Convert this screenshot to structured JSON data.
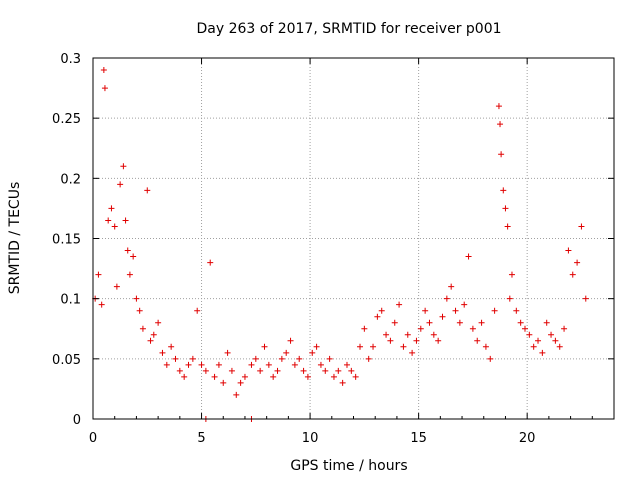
{
  "chart_data": {
    "type": "scatter",
    "title": "Day 263 of 2017, SRMTID for receiver p001",
    "xlabel": "GPS time / hours",
    "ylabel": "SRMTID / TECUs",
    "xlim": [
      0,
      24
    ],
    "ylim": [
      0,
      0.3
    ],
    "xticks": [
      0,
      5,
      10,
      15,
      20
    ],
    "yticks": [
      0,
      0.05,
      0.1,
      0.15,
      0.2,
      0.25,
      0.3
    ],
    "xtick_labels": [
      "0",
      "5",
      "10",
      "15",
      "20"
    ],
    "ytick_labels": [
      "0",
      "0.05",
      "0.1",
      "0.15",
      "0.2",
      "0.25",
      "0.3"
    ],
    "grid": true,
    "marker": "plus",
    "color": "#e00000",
    "series": [
      {
        "name": "SRMTID",
        "x": [
          0.1,
          0.25,
          0.4,
          0.5,
          0.55,
          0.7,
          0.85,
          1.0,
          1.1,
          1.25,
          1.4,
          1.5,
          1.6,
          1.7,
          1.85,
          2.0,
          2.15,
          2.3,
          2.5,
          2.65,
          2.8,
          3.0,
          3.2,
          3.4,
          3.6,
          3.8,
          4.0,
          4.2,
          4.4,
          4.6,
          4.8,
          5.0,
          5.2,
          5.4,
          5.6,
          5.8,
          6.0,
          6.2,
          6.4,
          6.6,
          6.8,
          7.0,
          7.3,
          7.5,
          7.7,
          7.9,
          8.1,
          8.3,
          8.5,
          8.7,
          8.9,
          9.1,
          9.3,
          9.5,
          9.7,
          9.9,
          10.1,
          10.3,
          10.5,
          10.7,
          10.9,
          11.1,
          11.3,
          11.5,
          11.7,
          11.9,
          12.1,
          12.3,
          12.5,
          12.7,
          12.9,
          13.1,
          13.3,
          13.5,
          13.7,
          13.9,
          14.1,
          14.3,
          14.5,
          14.7,
          14.9,
          15.1,
          15.3,
          15.5,
          15.7,
          15.9,
          16.1,
          16.3,
          16.5,
          16.7,
          16.9,
          17.1,
          17.3,
          17.5,
          17.7,
          17.9,
          18.1,
          18.3,
          18.5,
          18.7,
          18.75,
          18.8,
          18.9,
          19.0,
          19.1,
          19.2,
          19.3,
          19.5,
          19.7,
          19.9,
          20.1,
          20.3,
          20.5,
          20.7,
          20.9,
          21.1,
          21.3,
          21.5,
          21.7,
          21.9,
          22.1,
          22.3,
          22.5,
          22.7
        ],
        "y": [
          0.1,
          0.12,
          0.095,
          0.29,
          0.275,
          0.165,
          0.175,
          0.16,
          0.11,
          0.195,
          0.21,
          0.165,
          0.14,
          0.12,
          0.135,
          0.1,
          0.09,
          0.075,
          0.19,
          0.065,
          0.07,
          0.08,
          0.055,
          0.045,
          0.06,
          0.05,
          0.04,
          0.035,
          0.045,
          0.05,
          0.09,
          0.045,
          0.04,
          0.13,
          0.035,
          0.045,
          0.03,
          0.055,
          0.04,
          0.02,
          0.03,
          0.035,
          0.045,
          0.05,
          0.04,
          0.06,
          0.045,
          0.035,
          0.04,
          0.05,
          0.055,
          0.065,
          0.045,
          0.05,
          0.04,
          0.035,
          0.055,
          0.06,
          0.045,
          0.04,
          0.05,
          0.035,
          0.04,
          0.03,
          0.045,
          0.04,
          0.035,
          0.06,
          0.075,
          0.05,
          0.06,
          0.085,
          0.09,
          0.07,
          0.065,
          0.08,
          0.095,
          0.06,
          0.07,
          0.055,
          0.065,
          0.075,
          0.09,
          0.08,
          0.07,
          0.065,
          0.085,
          0.1,
          0.11,
          0.09,
          0.08,
          0.095,
          0.135,
          0.075,
          0.065,
          0.08,
          0.06,
          0.05,
          0.09,
          0.26,
          0.245,
          0.22,
          0.19,
          0.175,
          0.16,
          0.1,
          0.12,
          0.09,
          0.08,
          0.075,
          0.07,
          0.06,
          0.065,
          0.055,
          0.08,
          0.07,
          0.065,
          0.06,
          0.075,
          0.14,
          0.12,
          0.13,
          0.16,
          0.1
        ]
      },
      {
        "name": "zero-level markers",
        "x": [
          5.2,
          7.3
        ],
        "y": [
          0,
          0
        ]
      }
    ]
  }
}
